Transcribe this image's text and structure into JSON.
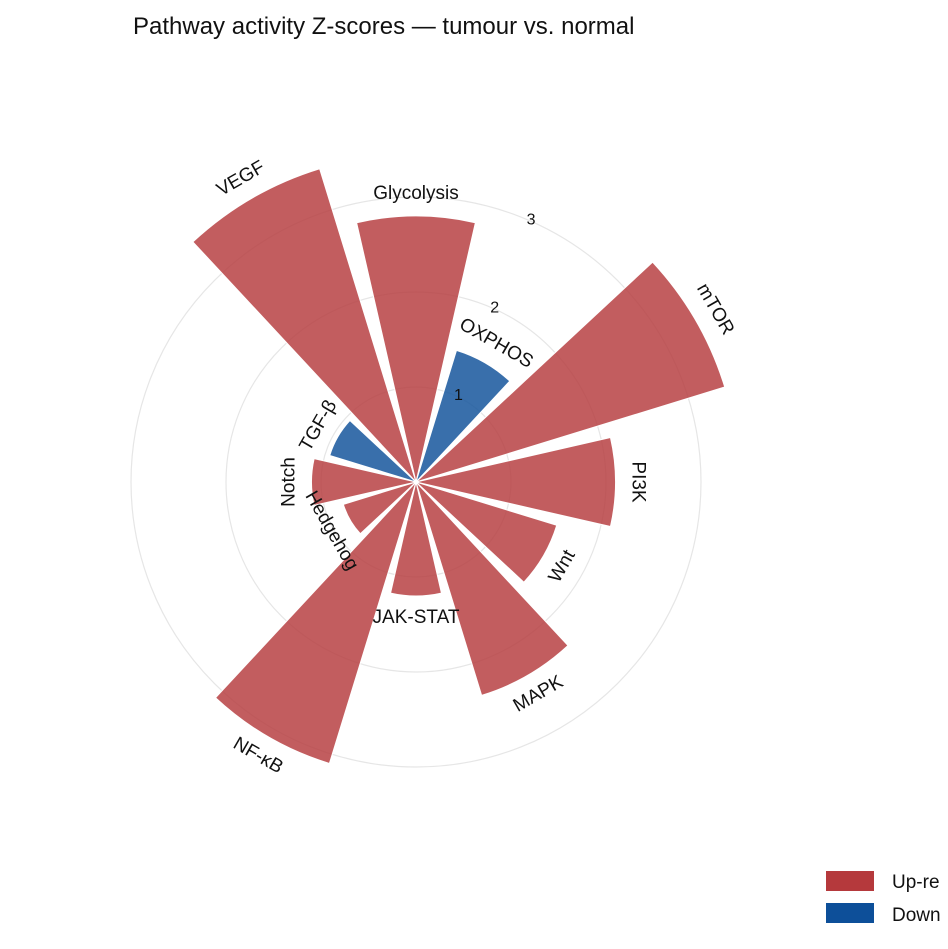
{
  "chart_data": {
    "type": "bar",
    "projection": "polar",
    "title": "Pathway activity Z-scores — tumour vs. normal",
    "categories": [
      "Glycolysis",
      "OXPHOS",
      "mTOR",
      "PI3K",
      "Wnt",
      "MAPK",
      "JAK-STAT",
      "NF-κB",
      "Hedgehog",
      "Notch",
      "TGF-β",
      "VEGF"
    ],
    "values": [
      2.8,
      1.45,
      3.4,
      2.1,
      1.55,
      2.35,
      1.2,
      3.1,
      0.8,
      1.1,
      0.95,
      3.45
    ],
    "direction": [
      "up",
      "down",
      "up",
      "up",
      "up",
      "up",
      "up",
      "up",
      "up",
      "up",
      "down",
      "up"
    ],
    "radial_ticks": [
      "1",
      "2",
      "3"
    ],
    "rlim": [
      0,
      3
    ],
    "grid": true,
    "legend": {
      "position": "bottom-right",
      "entries": [
        {
          "label": "Up-re",
          "color": "#b5393c"
        },
        {
          "label": "Down",
          "color": "#0d4f99"
        }
      ]
    },
    "colors": {
      "up": "#b5393c",
      "down": "#0d4f99"
    }
  }
}
